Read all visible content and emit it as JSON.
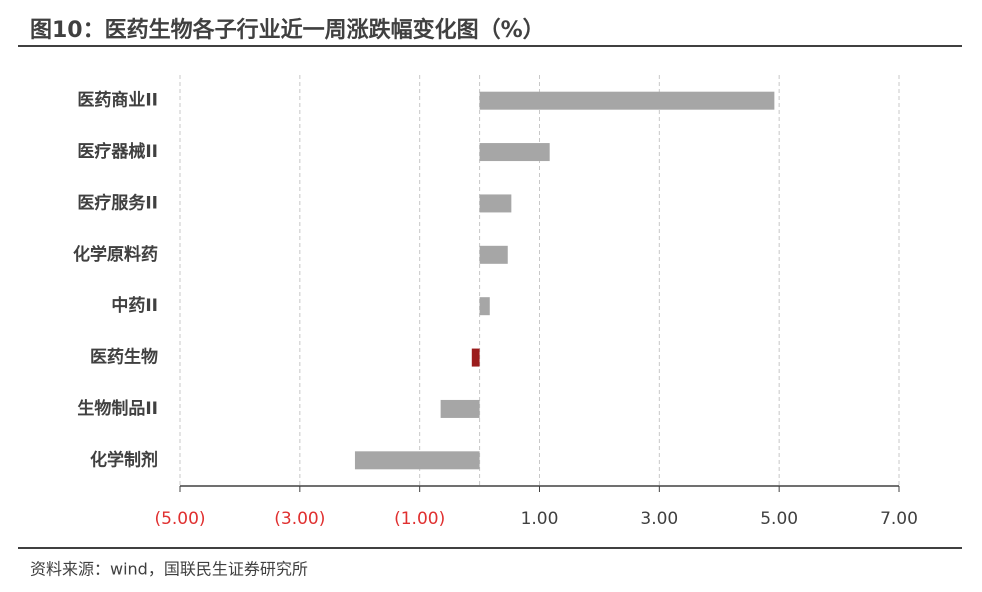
{
  "title": "图10：医药生物各子行业近一周涨跌幅变化图（%）",
  "source": "资料来源：wind，国联民生证券研究所",
  "chart_data": {
    "type": "barh",
    "categories": [
      "医药商业II",
      "医疗器械II",
      "医疗服务II",
      "化学原料药",
      "中药II",
      "医药生物",
      "生物制品II",
      "化学制剂"
    ],
    "values": [
      4.92,
      1.17,
      0.53,
      0.47,
      0.17,
      -0.13,
      -0.65,
      -2.08
    ],
    "color": "#a6a6a6",
    "highlight_color": "#9b1c1c",
    "highlight_category": "医药生物",
    "xlim": [
      -5,
      7
    ],
    "xticks": [
      {
        "value": -5,
        "label": "(5.00)"
      },
      {
        "value": -3,
        "label": "(3.00)"
      },
      {
        "value": -1,
        "label": "(1.00)"
      },
      {
        "value": 1,
        "label": "1.00"
      },
      {
        "value": 3,
        "label": "3.00"
      },
      {
        "value": 5,
        "label": "5.00"
      },
      {
        "value": 7,
        "label": "7.00"
      }
    ],
    "negative_label_color": "#e03030",
    "grid": true
  }
}
